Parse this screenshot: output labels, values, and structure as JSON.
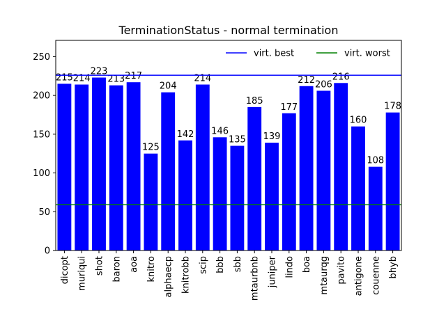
{
  "chart_data": {
    "type": "bar",
    "title": "TerminationStatus - normal termination",
    "xlabel": "",
    "ylabel": "",
    "ylim": [
      0,
      271
    ],
    "yticks": [
      0,
      50,
      100,
      150,
      200,
      250
    ],
    "grid": false,
    "legend_position": "top-right",
    "categories": [
      "dicopt",
      "muriqui",
      "shot",
      "baron",
      "aoa",
      "knitro",
      "alphaecp",
      "knitrobb",
      "scip",
      "bbb",
      "sbb",
      "mtaurbnb",
      "juniper",
      "lindo",
      "boa",
      "mtaurqg",
      "pavito",
      "antigone",
      "couenne",
      "bhyb"
    ],
    "series": [
      {
        "values": [
          215,
          214,
          223,
          213,
          217,
          125,
          204,
          142,
          214,
          146,
          135,
          185,
          139,
          177,
          212,
          206,
          216,
          160,
          108,
          178
        ],
        "color": "#0000ff"
      }
    ],
    "reference_lines": [
      {
        "name": "virt. best",
        "value": 226,
        "color": "#0000ff"
      },
      {
        "name": "virt. worst",
        "value": 59,
        "color": "#008000"
      }
    ]
  }
}
